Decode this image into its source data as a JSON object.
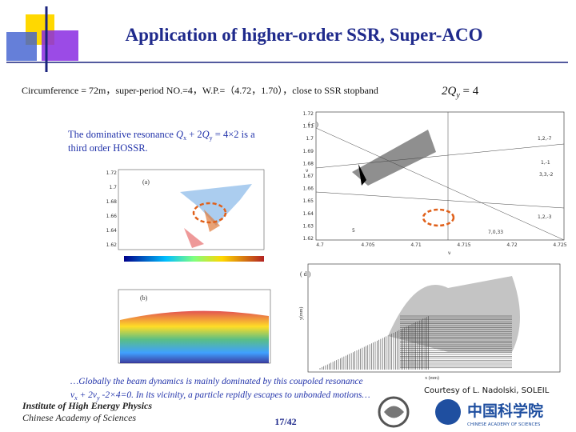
{
  "header": {
    "title": "Application of higher-order SSR, Super-ACO"
  },
  "subtitle": {
    "text": "Circumference = 72m，super-period NO.=4，W.P.=（4.72，1.70），close to SSR stopband",
    "formula": [
      "2Q",
      "y",
      " = 4"
    ]
  },
  "note": {
    "line1": [
      "The dominative resonance ",
      "Q",
      "x",
      " + 2",
      "Q",
      "y",
      " = 4×2  is a"
    ],
    "line2": "third order HOSSR."
  },
  "figures": {
    "panel_a": {
      "label": "(a)",
      "yticks": [
        "1.72",
        "1.7",
        "1.68",
        "1.66",
        "1.64",
        "1.62"
      ]
    },
    "panel_b": {
      "label": "(b)"
    },
    "panel_c": {
      "label": "( c )",
      "ylabel": "ν",
      "xlabel": "ν",
      "yticks": [
        "1.72",
        "1.71",
        "1.7",
        "1.69",
        "1.68",
        "1.67",
        "1.66",
        "1.65",
        "1.64",
        "1.63",
        "1.62"
      ],
      "xticks": [
        "4.7",
        "4.705",
        "4.71",
        "4.715",
        "4.72",
        "4.725"
      ],
      "resonances": [
        "1,2,-7",
        "1,-1",
        "3,3,-2",
        "1,2,-3",
        "5",
        "7,0,33"
      ]
    },
    "panel_d": {
      "label": "( d )",
      "ylabel": "y(mm)",
      "xlabel": "x (mm)"
    }
  },
  "caption": {
    "line1": "…Globally the beam dynamics is mainly dominated by this coupoled resonance",
    "line2": [
      "ν",
      "x",
      " + 2ν",
      "y",
      " -2×4=0. In its vicinity, a particle repidly escapes to unbonded motions…"
    ]
  },
  "footer": {
    "institute": "Institute of High Energy Physics",
    "academy": "Chinese Academy of Sciences",
    "page": "17/42",
    "courtesy": "Courtesy of L. Nadolski, SOLEIL",
    "logo_cn": "中国科学院",
    "logo_en": "CHINESE ACADEMY OF SCIENCES"
  }
}
